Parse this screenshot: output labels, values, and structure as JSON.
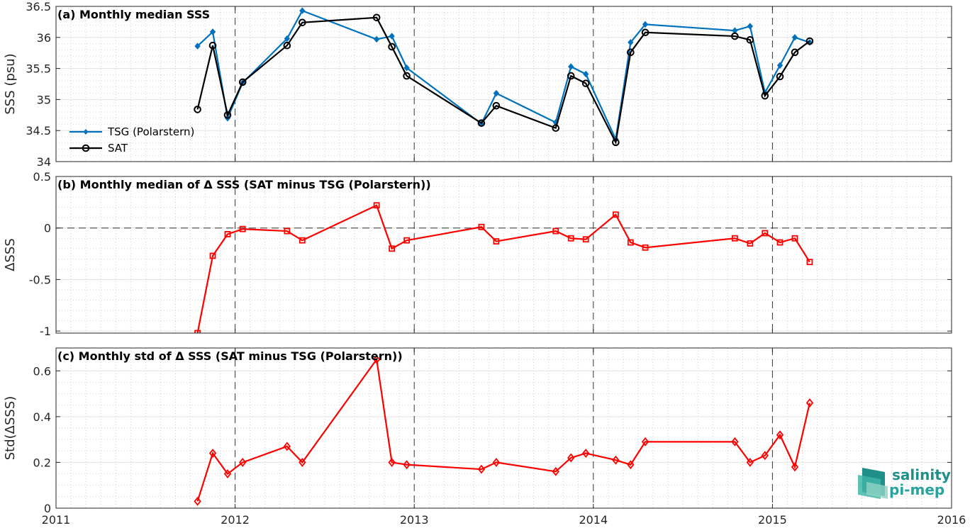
{
  "chart_data": [
    {
      "type": "line",
      "title": "(a) Monthly median SSS",
      "ylabel": "SSS (psu)",
      "xlim": [
        2011,
        2016
      ],
      "ylim": [
        34,
        36.5
      ],
      "yticks": [
        34,
        34.5,
        35,
        35.5,
        36,
        36.5
      ],
      "ytick_labels": [
        "34",
        "34.5",
        "35",
        "35.5",
        "36",
        "36.5"
      ],
      "grid": true,
      "legend": "bottom-left",
      "series": [
        {
          "name": "TSG (Polarstern)",
          "color": "#0072BD",
          "marker": "diamond-filled",
          "x": [
            2011.79,
            2011.875,
            2011.958,
            2012.042,
            2012.29,
            2012.375,
            2012.79,
            2012.875,
            2012.958,
            2013.375,
            2013.458,
            2013.79,
            2013.875,
            2013.958,
            2014.125,
            2014.208,
            2014.29,
            2014.79,
            2014.875,
            2014.958,
            2015.042,
            2015.125,
            2015.208
          ],
          "y": [
            35.86,
            36.09,
            34.7,
            35.27,
            35.98,
            36.43,
            35.97,
            36.02,
            35.51,
            34.61,
            35.1,
            34.63,
            35.53,
            35.41,
            34.36,
            35.92,
            36.21,
            36.11,
            36.18,
            35.11,
            35.55,
            36.0,
            35.92
          ]
        },
        {
          "name": "SAT",
          "color": "#000000",
          "marker": "circle-open",
          "x": [
            2011.79,
            2011.875,
            2011.958,
            2012.042,
            2012.29,
            2012.375,
            2012.79,
            2012.875,
            2012.958,
            2013.375,
            2013.458,
            2013.79,
            2013.875,
            2013.958,
            2014.125,
            2014.208,
            2014.29,
            2014.79,
            2014.875,
            2014.958,
            2015.042,
            2015.125,
            2015.208
          ],
          "y": [
            34.84,
            35.87,
            34.75,
            35.28,
            35.87,
            36.24,
            36.32,
            35.85,
            35.38,
            34.62,
            34.9,
            34.54,
            35.38,
            35.26,
            34.31,
            35.76,
            36.08,
            36.02,
            35.96,
            35.06,
            35.37,
            35.76,
            35.94
          ]
        }
      ]
    },
    {
      "type": "line",
      "title": "(b) Monthly median of Δ SSS (SAT minus TSG (Polarstern))",
      "ylabel": "ΔSSS",
      "xlim": [
        2011,
        2016
      ],
      "ylim": [
        -1.02,
        0.5
      ],
      "yticks": [
        -1,
        -0.5,
        0,
        0.5
      ],
      "ytick_labels": [
        "-1",
        "-0.5",
        "0",
        "0.5"
      ],
      "reference_line": 0,
      "grid": true,
      "series": [
        {
          "color": "#FF0000",
          "marker": "square-open",
          "x": [
            2011.79,
            2011.875,
            2011.958,
            2012.042,
            2012.29,
            2012.375,
            2012.79,
            2012.875,
            2012.958,
            2013.375,
            2013.458,
            2013.79,
            2013.875,
            2013.958,
            2014.125,
            2014.208,
            2014.29,
            2014.79,
            2014.875,
            2014.958,
            2015.042,
            2015.125,
            2015.208
          ],
          "y": [
            -1.02,
            -0.27,
            -0.06,
            -0.01,
            -0.03,
            -0.12,
            0.22,
            -0.2,
            -0.12,
            0.01,
            -0.13,
            -0.03,
            -0.1,
            -0.11,
            0.13,
            -0.14,
            -0.19,
            -0.1,
            -0.15,
            -0.05,
            -0.14,
            -0.1,
            -0.33
          ]
        }
      ]
    },
    {
      "type": "line",
      "title": "(c) Monthly std of Δ SSS (SAT minus TSG (Polarstern))",
      "ylabel": "Std(ΔSSS)",
      "xlabel": "",
      "xlim": [
        2011,
        2016
      ],
      "ylim": [
        0,
        0.7
      ],
      "yticks": [
        0,
        0.2,
        0.4,
        0.6
      ],
      "ytick_labels": [
        "0",
        "0.2",
        "0.4",
        "0.6"
      ],
      "xticks": [
        2011,
        2012,
        2013,
        2014,
        2015,
        2016
      ],
      "xtick_labels": [
        "2011",
        "2012",
        "2013",
        "2014",
        "2015",
        "2016"
      ],
      "grid": true,
      "series": [
        {
          "color": "#FF0000",
          "marker": "diamond-open",
          "x": [
            2011.79,
            2011.875,
            2011.958,
            2012.042,
            2012.29,
            2012.375,
            2012.79,
            2012.875,
            2012.958,
            2013.375,
            2013.458,
            2013.79,
            2013.875,
            2013.958,
            2014.125,
            2014.208,
            2014.29,
            2014.79,
            2014.875,
            2014.958,
            2015.042,
            2015.125,
            2015.208
          ],
          "y": [
            0.03,
            0.24,
            0.15,
            0.2,
            0.27,
            0.2,
            0.65,
            0.2,
            0.19,
            0.17,
            0.2,
            0.16,
            0.22,
            0.24,
            0.21,
            0.19,
            0.29,
            0.29,
            0.2,
            0.23,
            0.32,
            0.18,
            0.46
          ]
        }
      ]
    }
  ],
  "logo": {
    "line1": "salinity",
    "line2": "pi-mep"
  }
}
